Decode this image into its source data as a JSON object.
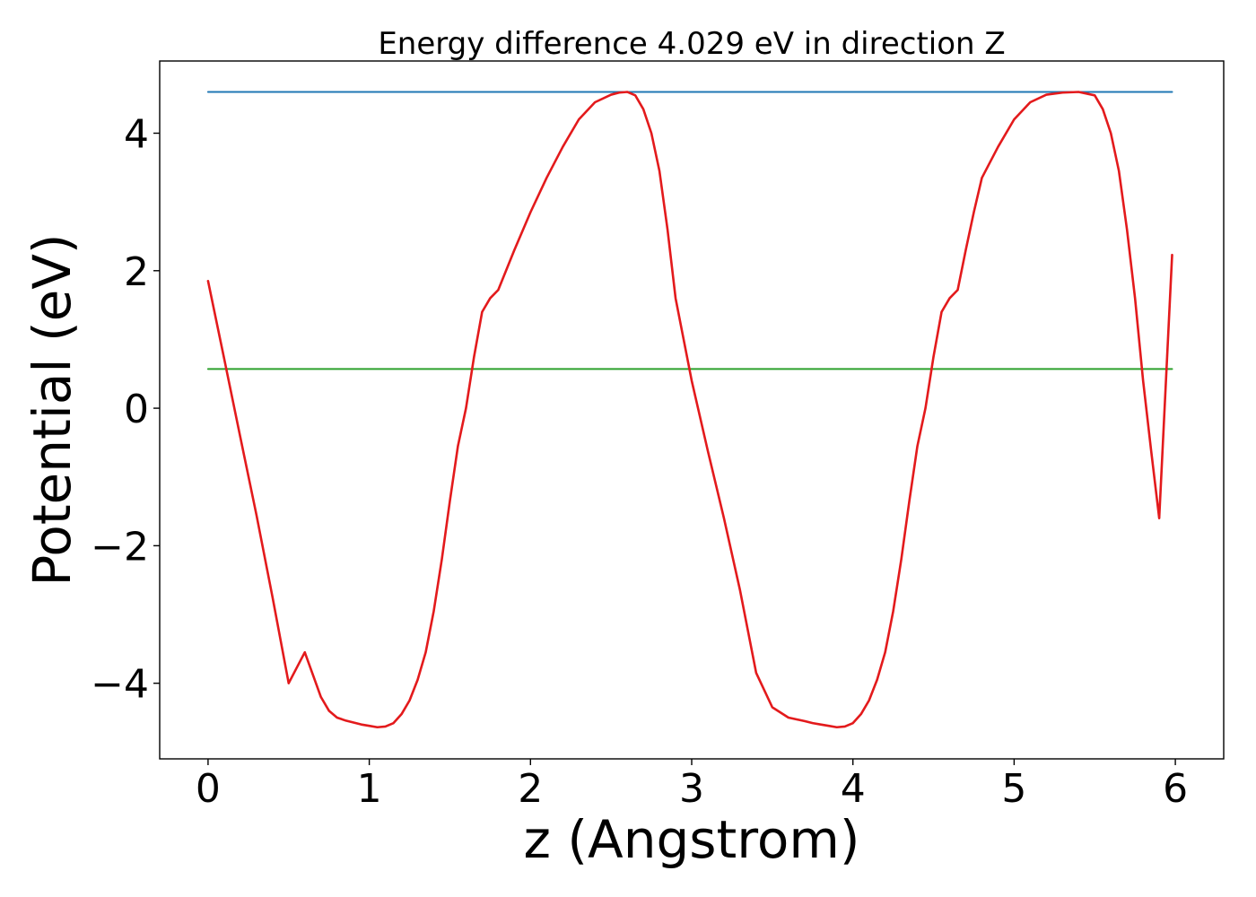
{
  "chart_data": {
    "type": "line",
    "title": "Energy difference 4.029 eV in direction Z",
    "xlabel": "z (Angstrom)",
    "ylabel": "Potential (eV)",
    "xlim": [
      -0.3,
      6.3
    ],
    "ylim": [
      -5.1,
      5.05
    ],
    "grid": false,
    "x_ticks": [
      0,
      1,
      2,
      3,
      4,
      5,
      6
    ],
    "x_tick_labels": [
      "0",
      "1",
      "2",
      "3",
      "4",
      "5",
      "6"
    ],
    "y_ticks": [
      -4,
      -2,
      0,
      2,
      4
    ],
    "y_tick_labels": [
      "−4",
      "−2",
      "0",
      "2",
      "4"
    ],
    "colors": {
      "potential": "#e31a1c",
      "upper_level": "#1f77b4",
      "lower_level": "#2ca02c"
    },
    "series": [
      {
        "x": [
          0,
          0.1,
          0.2,
          0.3,
          0.4,
          0.5,
          0.6,
          0.7,
          0.75,
          0.8,
          0.85,
          0.9,
          0.95,
          1.0,
          1.05,
          1.1,
          1.15,
          1.2,
          1.25,
          1.3,
          1.35,
          1.4,
          1.45,
          1.5,
          1.55,
          1.6,
          1.65,
          1.7,
          1.75,
          1.8,
          1.9,
          2.0,
          2.1,
          2.2,
          2.3,
          2.4,
          2.5,
          2.55,
          2.6,
          2.65,
          2.7,
          2.75,
          2.8,
          2.85,
          2.9,
          3.0,
          3.1,
          3.2,
          3.3,
          3.4,
          3.5,
          3.6,
          3.7,
          3.75,
          3.8,
          3.85,
          3.9,
          3.95,
          4.0,
          4.05,
          4.1,
          4.15,
          4.2,
          4.25,
          4.3,
          4.35,
          4.4,
          4.45,
          4.5,
          4.55,
          4.6,
          4.65,
          4.7,
          4.75,
          4.8,
          4.9,
          5.0,
          5.1,
          5.2,
          5.3,
          5.4,
          5.5,
          5.55,
          5.6,
          5.65,
          5.7,
          5.75,
          5.8,
          5.85,
          5.9,
          5.98
        ],
        "y": [
          1.85,
          0.72,
          -0.42,
          -1.55,
          -2.75,
          -4.0,
          -3.55,
          -4.2,
          -4.4,
          -4.5,
          -4.54,
          -4.57,
          -4.6,
          -4.62,
          -4.64,
          -4.63,
          -4.58,
          -4.45,
          -4.25,
          -3.95,
          -3.55,
          -2.95,
          -2.2,
          -1.35,
          -0.55,
          0.0,
          0.75,
          1.4,
          1.6,
          1.72,
          2.3,
          2.85,
          3.35,
          3.8,
          4.2,
          4.45,
          4.56,
          4.59,
          4.6,
          4.55,
          4.35,
          4.0,
          3.45,
          2.6,
          1.6,
          0.4,
          -0.62,
          -1.6,
          -2.65,
          -3.85,
          -4.35,
          -4.5,
          -4.55,
          -4.58,
          -4.6,
          -4.62,
          -4.64,
          -4.63,
          -4.58,
          -4.45,
          -4.25,
          -3.95,
          -3.55,
          -2.95,
          -2.2,
          -1.35,
          -0.55,
          0.0,
          0.75,
          1.4,
          1.6,
          1.72,
          2.3,
          2.85,
          3.35,
          3.8,
          4.2,
          4.45,
          4.56,
          4.59,
          4.6,
          4.55,
          4.35,
          4.0,
          3.45,
          2.6,
          1.6,
          0.4,
          -0.62,
          -1.6,
          2.23
        ]
      },
      {
        "x": [
          0,
          5.98
        ],
        "y": [
          4.6,
          4.6
        ]
      },
      {
        "x": [
          0,
          5.98
        ],
        "y": [
          0.57,
          0.57
        ]
      }
    ]
  }
}
